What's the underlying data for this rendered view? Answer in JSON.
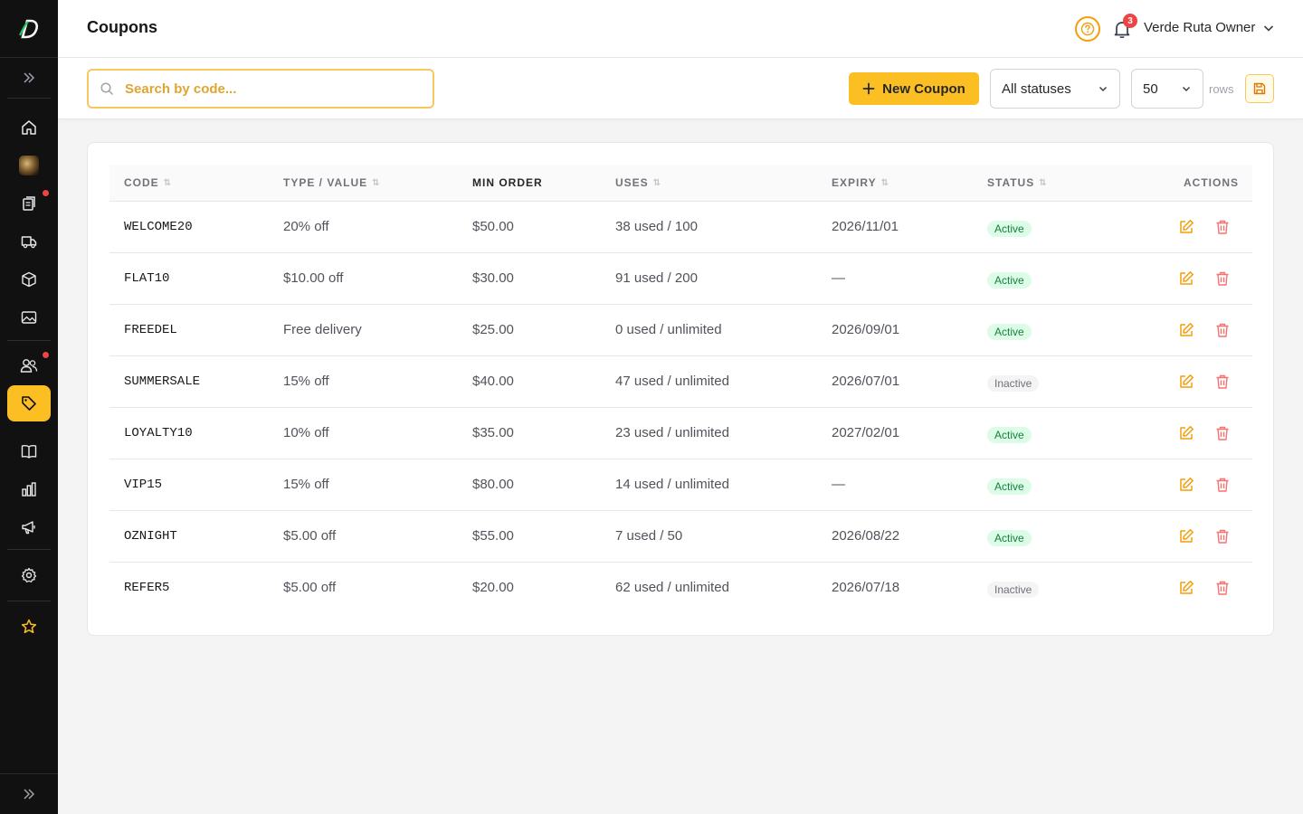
{
  "header": {
    "title": "Coupons",
    "notification_count": "3",
    "user_name": "Verde Ruta Owner"
  },
  "toolbar": {
    "search_placeholder": "Search by code...",
    "new_coupon_label": "New Coupon",
    "status_filter": "All statuses",
    "rows_per_page": "50",
    "rows_label": "rows"
  },
  "table": {
    "columns": {
      "code": "CODE",
      "type_value": "TYPE / VALUE",
      "min_order": "MIN ORDER",
      "uses": "USES",
      "expiry": "EXPIRY",
      "status": "STATUS",
      "actions": "ACTIONS"
    },
    "rows": [
      {
        "code": "WELCOME20",
        "type_value": "20% off",
        "min_order": "$50.00",
        "uses": "38 used / 100",
        "expiry": "2026/11/01",
        "status": "Active"
      },
      {
        "code": "FLAT10",
        "type_value": "$10.00 off",
        "min_order": "$30.00",
        "uses": "91 used / 200",
        "expiry": "—",
        "status": "Active"
      },
      {
        "code": "FREEDEL",
        "type_value": "Free delivery",
        "min_order": "$25.00",
        "uses": "0 used / unlimited",
        "expiry": "2026/09/01",
        "status": "Active"
      },
      {
        "code": "SUMMERSALE",
        "type_value": "15% off",
        "min_order": "$40.00",
        "uses": "47 used / unlimited",
        "expiry": "2026/07/01",
        "status": "Inactive"
      },
      {
        "code": "LOYALTY10",
        "type_value": "10% off",
        "min_order": "$35.00",
        "uses": "23 used / unlimited",
        "expiry": "2027/02/01",
        "status": "Active"
      },
      {
        "code": "VIP15",
        "type_value": "15% off",
        "min_order": "$80.00",
        "uses": "14 used / unlimited",
        "expiry": "—",
        "status": "Active"
      },
      {
        "code": "OZNIGHT",
        "type_value": "$5.00 off",
        "min_order": "$55.00",
        "uses": "7 used / 50",
        "expiry": "2026/08/22",
        "status": "Active"
      },
      {
        "code": "REFER5",
        "type_value": "$5.00 off",
        "min_order": "$20.00",
        "uses": "62 used / unlimited",
        "expiry": "2026/07/18",
        "status": "Inactive"
      }
    ]
  },
  "sidebar": {
    "items": [
      {
        "icon": "home-icon"
      },
      {
        "icon": "store-avatar"
      },
      {
        "icon": "orders-icon",
        "has_alert": true
      },
      {
        "icon": "delivery-truck-icon"
      },
      {
        "icon": "box-icon"
      },
      {
        "icon": "image-icon"
      },
      {
        "icon": "users-icon",
        "has_alert": true
      },
      {
        "icon": "tag-icon",
        "active": true
      },
      {
        "icon": "book-icon"
      },
      {
        "icon": "bar-chart-icon"
      },
      {
        "icon": "megaphone-icon"
      },
      {
        "icon": "gear-icon"
      },
      {
        "icon": "star-icon"
      }
    ]
  },
  "colors": {
    "accent": "#fbbf24",
    "sidebar_bg": "#111111",
    "active_badge": "#15803d",
    "alert": "#ef4444"
  }
}
